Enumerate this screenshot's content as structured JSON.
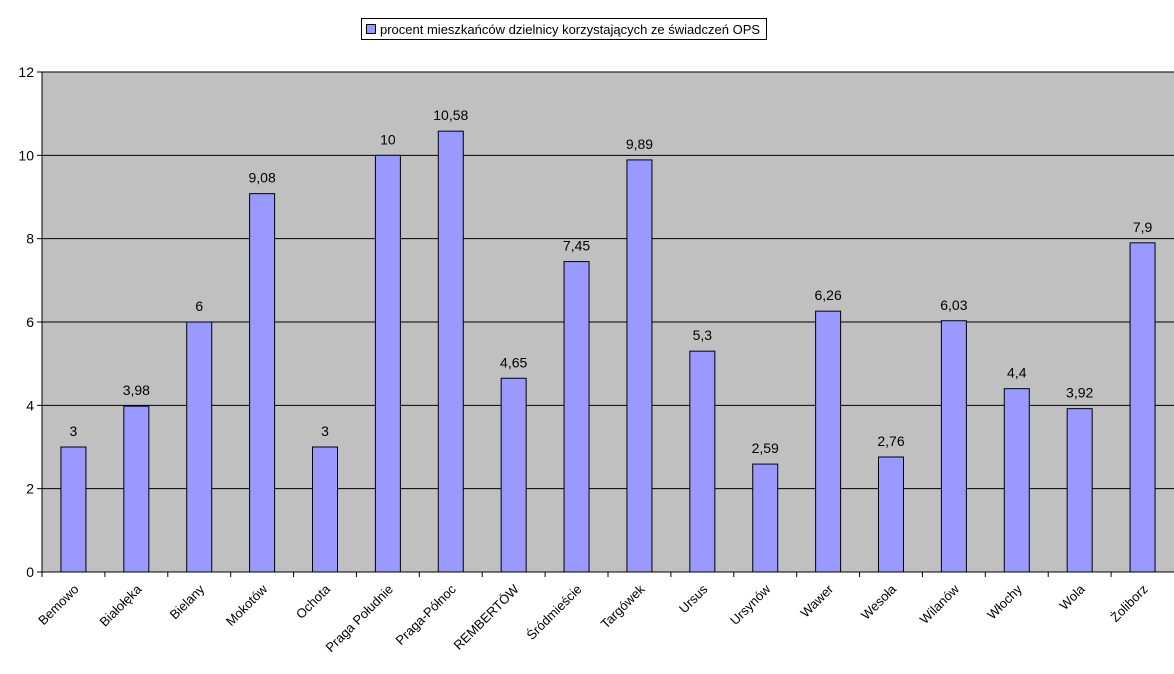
{
  "colors": {
    "bar_fill": "#9999ff",
    "plot_background": "#c0c0c0",
    "gridline": "#000000",
    "text": "#000000"
  },
  "chart_data": {
    "type": "bar",
    "categories": [
      "Bemowo",
      "Białołęka",
      "Bielany",
      "Mokotów",
      "Ochota",
      "Praga Południe",
      "Praga-Północ",
      "REMBERTÓW",
      "Śródmieście",
      "Targówek",
      "Ursus",
      "Ursynów",
      "Wawer",
      "Wesoła",
      "Wilanów",
      "Włochy",
      "Wola",
      "Żoliborz"
    ],
    "series": [
      {
        "name": "procent mieszkańców dzielnicy korzystających ze świadczeń OPS",
        "values": [
          3,
          3.98,
          6,
          9.08,
          3,
          10,
          10.58,
          4.65,
          7.45,
          9.89,
          5.3,
          2.59,
          6.26,
          2.76,
          6.03,
          4.4,
          3.92,
          7.9
        ],
        "labels": [
          "3",
          "3,98",
          "6",
          "9,08",
          "3",
          "10",
          "10,58",
          "4,65",
          "7,45",
          "9,89",
          "5,3",
          "2,59",
          "6,26",
          "2,76",
          "6,03",
          "4,4",
          "3,92",
          "7,9"
        ]
      }
    ],
    "ylim": [
      0,
      12
    ],
    "yticks": [
      0,
      2,
      4,
      6,
      8,
      10,
      12
    ],
    "ytick_labels": [
      "0",
      "2",
      "4",
      "6",
      "8",
      "10",
      "12"
    ],
    "grid": true,
    "legend_position": "top"
  }
}
